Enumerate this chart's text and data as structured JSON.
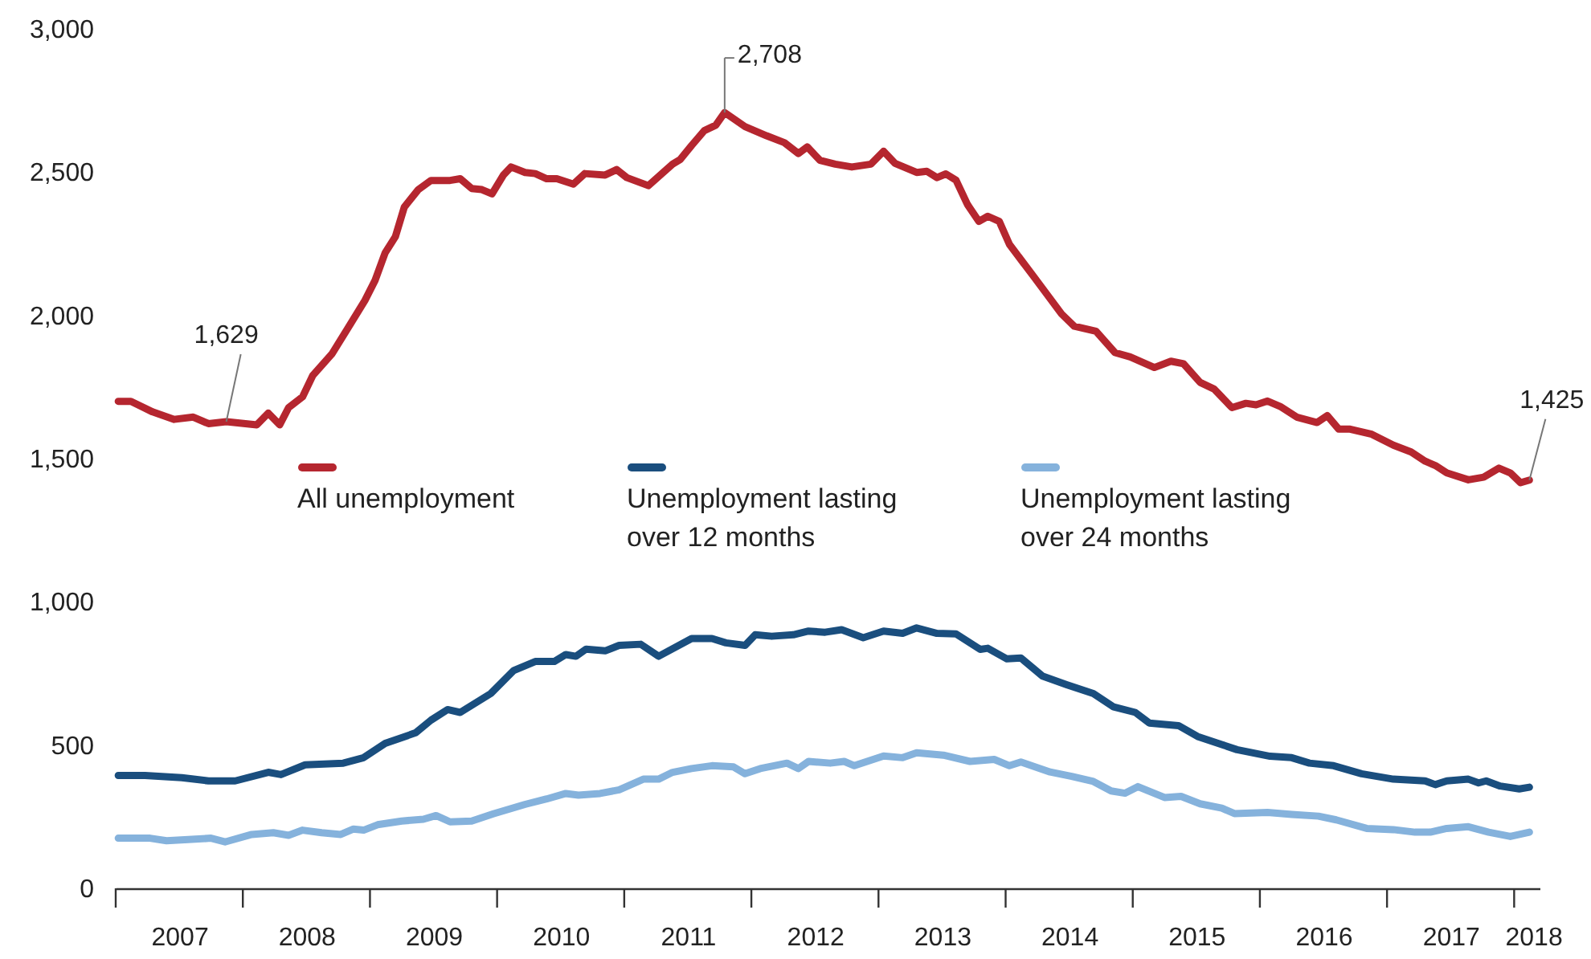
{
  "chart_data": {
    "type": "line",
    "xlim": [
      2007,
      2018.2
    ],
    "xticks": [
      {
        "value": 2007,
        "label": null
      },
      {
        "value": 2008,
        "label": null
      },
      {
        "value": 2009,
        "label": null
      },
      {
        "value": 2010,
        "label": null
      },
      {
        "value": 2011,
        "label": null
      },
      {
        "value": 2012,
        "label": null
      },
      {
        "value": 2013,
        "label": null
      },
      {
        "value": 2014,
        "label": null
      },
      {
        "value": 2015,
        "label": null
      },
      {
        "value": 2016,
        "label": null
      },
      {
        "value": 2017,
        "label": null
      },
      {
        "value": 2018,
        "label": null
      },
      {
        "value": 2007.5,
        "label": "2007"
      },
      {
        "value": 2008.5,
        "label": "2008"
      },
      {
        "value": 2009.5,
        "label": "2009"
      },
      {
        "value": 2010.5,
        "label": "2010"
      },
      {
        "value": 2011.5,
        "label": "2011"
      },
      {
        "value": 2012.5,
        "label": "2012"
      },
      {
        "value": 2013.5,
        "label": "2013"
      },
      {
        "value": 2014.5,
        "label": "2014"
      },
      {
        "value": 2015.5,
        "label": "2015"
      },
      {
        "value": 2016.5,
        "label": "2016"
      },
      {
        "value": 2017.5,
        "label": "2017"
      },
      {
        "value": 2018.15,
        "label": "2018"
      }
    ],
    "ylim": [
      0,
      3000
    ],
    "yticks": [
      {
        "value": 0,
        "label": "0"
      },
      {
        "value": 500,
        "label": "500"
      },
      {
        "value": 1000,
        "label": "1,000"
      },
      {
        "value": 1500,
        "label": "1,500"
      },
      {
        "value": 2000,
        "label": "2,000"
      },
      {
        "value": 2500,
        "label": "2,500"
      },
      {
        "value": 3000,
        "label": "3,000"
      }
    ],
    "legend": "center",
    "series": [
      {
        "name": "All unemployment",
        "color": "#b5262f",
        "x": [
          2007.02,
          2007.12,
          2007.29,
          2007.46,
          2007.61,
          2007.73,
          2007.87,
          2008.11,
          2008.2,
          2008.29,
          2008.36,
          2008.47,
          2008.55,
          2008.7,
          2008.83,
          2008.96,
          2009.04,
          2009.12,
          2009.2,
          2009.27,
          2009.38,
          2009.48,
          2009.63,
          2009.71,
          2009.8,
          2009.88,
          2009.96,
          2010.05,
          2010.11,
          2010.22,
          2010.3,
          2010.39,
          2010.47,
          2010.6,
          2010.69,
          2010.85,
          2010.94,
          2011.02,
          2011.19,
          2011.38,
          2011.44,
          2011.53,
          2011.63,
          2011.72,
          2011.79,
          2011.95,
          2012.12,
          2012.26,
          2012.37,
          2012.44,
          2012.54,
          2012.66,
          2012.79,
          2012.94,
          2013.04,
          2013.13,
          2013.3,
          2013.38,
          2013.46,
          2013.53,
          2013.61,
          2013.7,
          2013.79,
          2013.86,
          2013.95,
          2014.03,
          2014.22,
          2014.44,
          2014.54,
          2014.71,
          2014.86,
          2014.98,
          2015.17,
          2015.3,
          2015.4,
          2015.53,
          2015.64,
          2015.78,
          2015.89,
          2015.97,
          2016.06,
          2016.16,
          2016.29,
          2016.45,
          2016.53,
          2016.62,
          2016.71,
          2016.88,
          2017.05,
          2017.19,
          2017.3,
          2017.38,
          2017.47,
          2017.64,
          2017.76,
          2017.88,
          2017.97,
          2018.05,
          2018.12
        ],
        "values": [
          1700,
          1700,
          1663,
          1637,
          1645,
          1622,
          1629,
          1618,
          1659,
          1618,
          1678,
          1716,
          1790,
          1865,
          1958,
          2052,
          2122,
          2219,
          2275,
          2378,
          2439,
          2471,
          2471,
          2477,
          2443,
          2439,
          2424,
          2490,
          2518,
          2499,
          2495,
          2477,
          2477,
          2458,
          2495,
          2490,
          2509,
          2481,
          2453,
          2528,
          2544,
          2593,
          2645,
          2664,
          2708,
          2659,
          2627,
          2603,
          2565,
          2588,
          2541,
          2528,
          2518,
          2528,
          2573,
          2531,
          2499,
          2503,
          2481,
          2494,
          2472,
          2387,
          2328,
          2346,
          2328,
          2248,
          2136,
          2005,
          1962,
          1945,
          1870,
          1855,
          1818,
          1840,
          1831,
          1766,
          1743,
          1678,
          1693,
          1688,
          1701,
          1682,
          1645,
          1626,
          1650,
          1603,
          1603,
          1585,
          1547,
          1523,
          1491,
          1476,
          1450,
          1426,
          1435,
          1467,
          1450,
          1416,
          1425
        ]
      },
      {
        "name": "Unemployment lasting over 12 months",
        "color": "#1a4e7e",
        "x": [
          2007.02,
          2007.23,
          2007.52,
          2007.73,
          2007.94,
          2008.2,
          2008.3,
          2008.49,
          2008.79,
          2008.95,
          2009.12,
          2009.36,
          2009.48,
          2009.61,
          2009.71,
          2009.95,
          2010.13,
          2010.3,
          2010.45,
          2010.54,
          2010.62,
          2010.7,
          2010.85,
          2010.96,
          2011.13,
          2011.27,
          2011.53,
          2011.69,
          2011.8,
          2011.95,
          2012.03,
          2012.16,
          2012.33,
          2012.45,
          2012.58,
          2012.71,
          2012.88,
          2013.04,
          2013.19,
          2013.3,
          2013.46,
          2013.61,
          2013.8,
          2013.86,
          2014.01,
          2014.12,
          2014.29,
          2014.48,
          2014.69,
          2014.85,
          2015.02,
          2015.13,
          2015.36,
          2015.51,
          2015.7,
          2015.82,
          2016.08,
          2016.25,
          2016.39,
          2016.58,
          2016.8,
          2017.05,
          2017.3,
          2017.38,
          2017.47,
          2017.64,
          2017.72,
          2017.78,
          2017.89,
          2018.04,
          2018.12
        ],
        "values": [
          394,
          394,
          386,
          375,
          375,
          405,
          397,
          431,
          437,
          456,
          506,
          543,
          587,
          624,
          614,
          680,
          760,
          792,
          792,
          816,
          810,
          835,
          829,
          848,
          852,
          810,
          872,
          872,
          857,
          848,
          885,
          880,
          885,
          898,
          894,
          903,
          875,
          898,
          890,
          909,
          890,
          888,
          834,
          838,
          801,
          804,
          741,
          711,
          680,
          633,
          614,
          577,
          568,
          530,
          502,
          484,
          461,
          456,
          437,
          428,
          400,
          381,
          375,
          362,
          375,
          381,
          368,
          375,
          357,
          347,
          353
        ]
      },
      {
        "name": "Unemployment lasting over 24 months",
        "color": "#85b2dc",
        "x": [
          2007.02,
          2007.27,
          2007.4,
          2007.57,
          2007.75,
          2007.86,
          2008.07,
          2008.24,
          2008.36,
          2008.47,
          2008.62,
          2008.77,
          2008.87,
          2008.95,
          2009.06,
          2009.25,
          2009.42,
          2009.52,
          2009.63,
          2009.8,
          2009.97,
          2010.22,
          2010.39,
          2010.54,
          2010.64,
          2010.81,
          2010.96,
          2011.15,
          2011.27,
          2011.38,
          2011.53,
          2011.69,
          2011.86,
          2011.95,
          2012.07,
          2012.28,
          2012.37,
          2012.45,
          2012.62,
          2012.73,
          2012.81,
          2013.04,
          2013.19,
          2013.3,
          2013.51,
          2013.72,
          2013.91,
          2014.03,
          2014.12,
          2014.35,
          2014.52,
          2014.69,
          2014.83,
          2014.94,
          2015.04,
          2015.25,
          2015.38,
          2015.53,
          2015.7,
          2015.8,
          2016.06,
          2016.25,
          2016.46,
          2016.6,
          2016.84,
          2017.05,
          2017.22,
          2017.34,
          2017.47,
          2017.64,
          2017.8,
          2017.97,
          2018.12
        ],
        "values": [
          175,
          175,
          166,
          170,
          175,
          162,
          188,
          194,
          185,
          203,
          194,
          188,
          207,
          203,
          222,
          235,
          241,
          254,
          232,
          235,
          260,
          293,
          312,
          331,
          325,
          331,
          344,
          381,
          381,
          405,
          418,
          428,
          424,
          400,
          418,
          437,
          418,
          443,
          437,
          443,
          428,
          462,
          456,
          473,
          465,
          443,
          450,
          428,
          441,
          406,
          391,
          373,
          340,
          332,
          355,
          317,
          321,
          295,
          280,
          261,
          265,
          258,
          252,
          239,
          209,
          205,
          196,
          196,
          209,
          215,
          196,
          181,
          196
        ]
      }
    ],
    "annotations": [
      {
        "text": "1,629",
        "x": 2007.87,
        "y": 1629
      },
      {
        "text": "2,708",
        "x": 2011.79,
        "y": 2708
      },
      {
        "text": "1,425",
        "x": 2018.12,
        "y": 1425
      }
    ]
  }
}
